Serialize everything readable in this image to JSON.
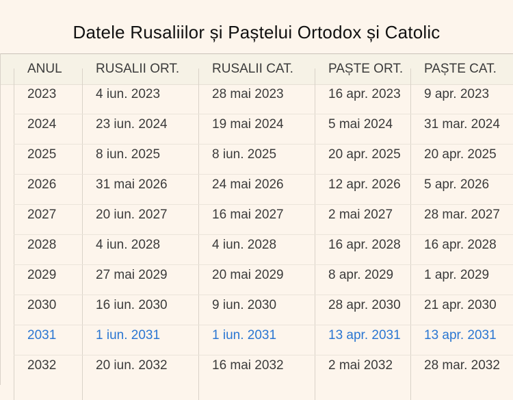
{
  "title": "Datele Rusaliilor și Paștelui Ortodox și Catolic",
  "columns": [
    "ANUL",
    "RUSALII ORT.",
    "RUSALII CAT.",
    "PAȘTE ORT.",
    "PAȘTE CAT."
  ],
  "highlight_color": "#2a76d2",
  "rows": [
    [
      "2023",
      "4 iun. 2023",
      "28 mai 2023",
      "16 apr. 2023",
      "9 apr. 2023"
    ],
    [
      "2024",
      "23 iun. 2024",
      "19 mai 2024",
      "5 mai 2024",
      "31 mar. 2024"
    ],
    [
      "2025",
      "8 iun. 2025",
      "8 iun. 2025",
      "20 apr. 2025",
      "20 apr. 2025"
    ],
    [
      "2026",
      "31 mai 2026",
      "24 mai 2026",
      "12 apr. 2026",
      "5 apr. 2026"
    ],
    [
      "2027",
      "20 iun. 2027",
      "16 mai 2027",
      "2 mai 2027",
      "28 mar. 2027"
    ],
    [
      "2028",
      "4 iun. 2028",
      "4 iun. 2028",
      "16 apr. 2028",
      "16 apr. 2028"
    ],
    [
      "2029",
      "27 mai 2029",
      "20 mai 2029",
      "8 apr. 2029",
      "1 apr. 2029"
    ],
    [
      "2030",
      "16 iun. 2030",
      "9 iun. 2030",
      "28 apr. 2030",
      "21 apr. 2030"
    ],
    [
      "2031",
      "1 iun. 2031",
      "1 iun. 2031",
      "13 apr. 2031",
      "13 apr. 2031"
    ],
    [
      "2032",
      "20 iun. 2032",
      "16 mai 2032",
      "2 mai 2032",
      "28 mar. 2032"
    ]
  ],
  "highlighted_year": "2031"
}
